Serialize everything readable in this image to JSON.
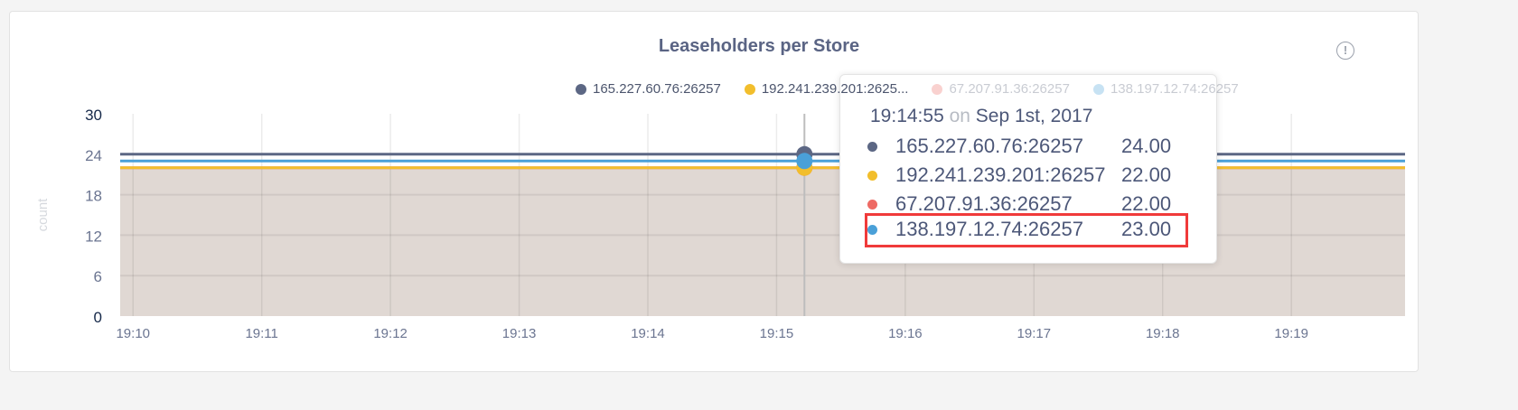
{
  "chart_data": {
    "type": "area",
    "title": "Leaseholders per Store",
    "ylabel": "count",
    "xlabel": "",
    "ylim": [
      0,
      30
    ],
    "yticks": [
      "0",
      "6",
      "12",
      "18",
      "24",
      "30"
    ],
    "xticks": [
      "19:10",
      "19:11",
      "19:12",
      "19:13",
      "19:14",
      "19:15",
      "19:16",
      "19:17",
      "19:18",
      "19:19"
    ],
    "xlim": [
      "19:09:54",
      "19:19:53"
    ],
    "grid": true,
    "legend_position": "top-right",
    "series": [
      {
        "name": "165.227.60.76:26257",
        "color": "#5c6784",
        "value": 24
      },
      {
        "name": "192.241.239.201:26257",
        "legend_label": "192.241.239.201:2625...",
        "color": "#f2be2c",
        "value": 22
      },
      {
        "name": "67.207.91.36:26257",
        "color": "#ee6a64",
        "value": 22
      },
      {
        "name": "138.197.12.74:26257",
        "color": "#4aa0d8",
        "value": 23
      }
    ],
    "area_fill_color": "#e0d8d3"
  },
  "info_icon": "info-circle-icon",
  "info_label": "!",
  "tooltip": {
    "time": "19:14:55",
    "on": "on",
    "date": "Sep 1st, 2017",
    "rows": [
      {
        "name": "165.227.60.76:26257",
        "value": "24.00"
      },
      {
        "name": "192.241.239.201:26257",
        "value": "22.00"
      },
      {
        "name": "67.207.91.36:26257",
        "value": "22.00"
      },
      {
        "name": "138.197.12.74:26257",
        "value": "23.00"
      }
    ],
    "highlighted_row": 3
  }
}
